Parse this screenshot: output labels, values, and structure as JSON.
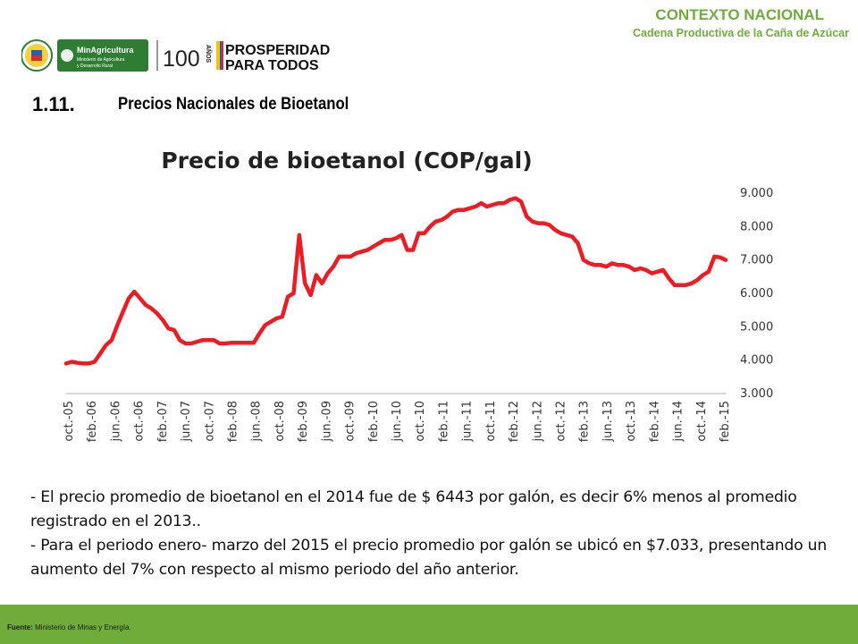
{
  "header": {
    "context_title": "CONTEXTO NACIONAL",
    "context_subtitle": "Cadena Productiva de la Caña de Azúcar",
    "logo_min_name": "MinAgricultura",
    "logo_min_line1": "Ministerio de Agricultura",
    "logo_min_line2": "y Desarrollo Rural",
    "logo_100": "100",
    "logo_anos": "AÑOS",
    "logo_prosperidad_1": "PROSPERIDAD",
    "logo_prosperidad_2": "PARA TODOS"
  },
  "section": {
    "number": "1.11.",
    "title": "Precios Nacionales de Bioetanol"
  },
  "chart_data": {
    "type": "line",
    "title": "Precio de bioetanol (COP/gal)",
    "xlabel": "",
    "ylabel": "",
    "ylim": [
      3000,
      9000
    ],
    "yticks": [
      "3.000",
      "4.000",
      "5.000",
      "6.000",
      "7.000",
      "8.000",
      "9.000"
    ],
    "ytick_values": [
      3000,
      4000,
      5000,
      6000,
      7000,
      8000,
      9000
    ],
    "axis_position": "right",
    "grid": false,
    "color": "#ed1c24",
    "x_start": "oct.-05",
    "xticks": [
      "oct.-05",
      "feb.-06",
      "jun.-06",
      "oct.-06",
      "feb.-07",
      "jun.-07",
      "oct.-07",
      "feb.-08",
      "jun.-08",
      "oct.-08",
      "feb.-09",
      "jun.-09",
      "oct.-09",
      "feb.-10",
      "jun.-10",
      "oct.-10",
      "feb.-11",
      "jun.-11",
      "oct.-11",
      "feb.-12",
      "jun.-12",
      "oct.-12",
      "feb.-13",
      "jun.-13",
      "oct.-13",
      "feb.-14",
      "jun.-14",
      "oct.-14",
      "feb.-15"
    ],
    "series": [
      {
        "values": [
          3900,
          3950,
          3920,
          3900,
          3900,
          3950,
          4200,
          4450,
          4600,
          5050,
          5450,
          5850,
          6050,
          5850,
          5650,
          5550,
          5400,
          5200,
          4950,
          4900,
          4600,
          4500,
          4500,
          4550,
          4600,
          4600,
          4600,
          4500,
          4500,
          4520,
          4520,
          4520,
          4520,
          4520,
          4800,
          5050,
          5150,
          5250,
          5300,
          5900,
          6000,
          7750,
          6300,
          5950,
          6550,
          6300,
          6600,
          6800,
          7100,
          7100,
          7100,
          7200,
          7250,
          7300,
          7400,
          7500,
          7600,
          7600,
          7650,
          7750,
          7300,
          7300,
          7800,
          7800,
          8000,
          8150,
          8200,
          8300,
          8450,
          8500,
          8500,
          8550,
          8600,
          8700,
          8600,
          8650,
          8700,
          8700,
          8800,
          8850,
          8750,
          8300,
          8150,
          8100,
          8100,
          8050,
          7900,
          7800,
          7750,
          7700,
          7500,
          7000,
          6900,
          6850,
          6850,
          6800,
          6900,
          6850,
          6850,
          6800,
          6700,
          6750,
          6700,
          6600,
          6650,
          6700,
          6450,
          6250,
          6250,
          6250,
          6300,
          6400,
          6550,
          6650,
          7100,
          7080,
          7000
        ]
      }
    ]
  },
  "paragraphs": {
    "p1": "- El precio promedio de bioetanol en el 2014  fue de $ 6443 por galón, es decir 6% menos al promedio registrado en el 2013..",
    "p2": "- Para el  periodo enero- marzo del 2015 el precio promedio por galón se ubicó en $7.033, presentando un aumento del 7% con  respecto al mismo periodo del año anterior."
  },
  "footer": {
    "label": "Fuente:",
    "source": "Ministerio de Minas y Energía."
  },
  "colors": {
    "green": "#6fac3a",
    "line": "#ed1c24",
    "axis": "#c8c8c8"
  }
}
